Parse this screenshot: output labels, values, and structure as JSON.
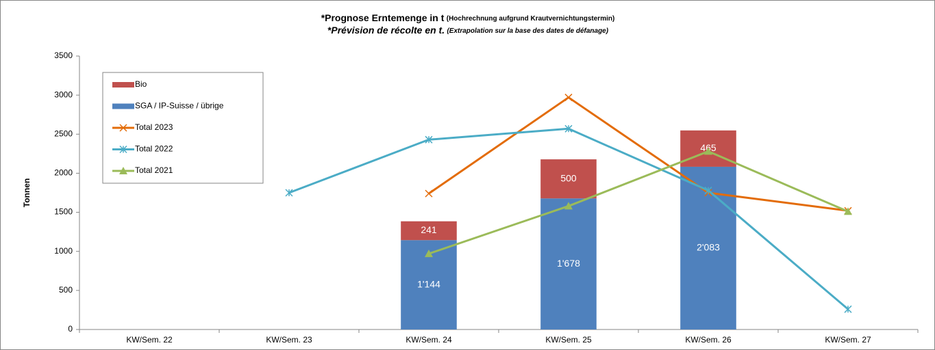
{
  "chart_data": {
    "type": "bar",
    "title_de": "*Prognose Erntemenge in t",
    "title_de_note": "(Hochrechnung aufgrund Krautvernichtungstermin)",
    "title_fr": "*Prévision de récolte en t.",
    "title_fr_note": "(Extrapolation sur la base des dates de défanage)",
    "y_label": "Tonnen",
    "categories": [
      "KW/Sem. 22",
      "KW/Sem. 23",
      "KW/Sem. 24",
      "KW/Sem. 25",
      "KW/Sem. 26",
      "KW/Sem. 27"
    ],
    "ylim": [
      0,
      3500
    ],
    "yticks": [
      0,
      500,
      1000,
      1500,
      2000,
      2500,
      3000,
      3500
    ],
    "grid": false,
    "legend": "top-left",
    "series": [
      {
        "name": "SGA / IP-Suisse / übrige",
        "type": "bar",
        "color": "#4f81bd",
        "values": [
          null,
          null,
          1144,
          1678,
          2083,
          null
        ],
        "value_labels": [
          null,
          null,
          "1'144",
          "1'678",
          "2'083",
          null
        ]
      },
      {
        "name": "Bio",
        "type": "bar",
        "color": "#c0504d",
        "values": [
          null,
          null,
          241,
          500,
          465,
          null
        ],
        "value_labels": [
          null,
          null,
          "241",
          "500",
          "465",
          null
        ]
      },
      {
        "name": "Total 2023",
        "type": "line",
        "marker": "x",
        "color": "#e36c09",
        "values": [
          null,
          null,
          1740,
          2970,
          1750,
          1520
        ]
      },
      {
        "name": "Total 2022",
        "type": "line",
        "marker": "star",
        "color": "#4bacc6",
        "values": [
          null,
          1750,
          2430,
          2570,
          1780,
          260
        ]
      },
      {
        "name": "Total 2021",
        "type": "line",
        "marker": "triangle",
        "color": "#9bbb59",
        "values": [
          null,
          null,
          970,
          1580,
          2280,
          1510
        ]
      }
    ]
  }
}
